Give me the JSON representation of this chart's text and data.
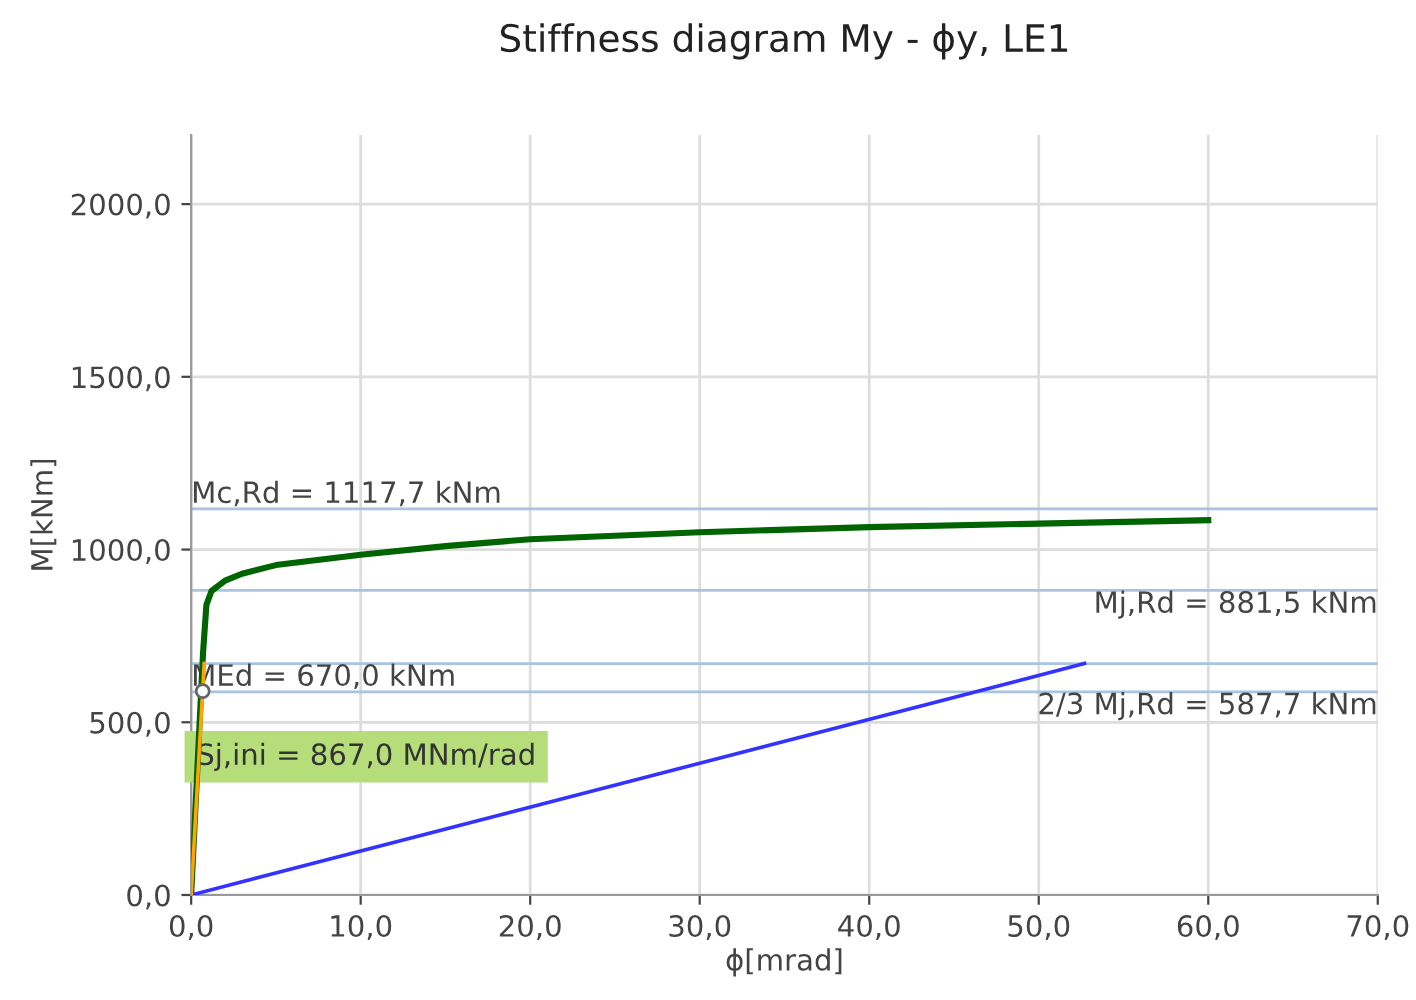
{
  "chart_data": {
    "type": "line",
    "title": "Stiffness diagram My - ϕy, LE1",
    "xlabel": "ϕ[mrad]",
    "ylabel": "M[kNm]",
    "xlim": [
      0,
      70
    ],
    "ylim": [
      0,
      2200
    ],
    "xticks": [
      {
        "value": 0,
        "label": "0,0"
      },
      {
        "value": 10,
        "label": "10,0"
      },
      {
        "value": 20,
        "label": "20,0"
      },
      {
        "value": 30,
        "label": "30,0"
      },
      {
        "value": 40,
        "label": "40,0"
      },
      {
        "value": 50,
        "label": "50,0"
      },
      {
        "value": 60,
        "label": "60,0"
      },
      {
        "value": 70,
        "label": "70,0"
      }
    ],
    "yticks": [
      {
        "value": 0,
        "label": "0,0"
      },
      {
        "value": 500,
        "label": "500,0"
      },
      {
        "value": 1000,
        "label": "1000,0"
      },
      {
        "value": 1500,
        "label": "1500,0"
      },
      {
        "value": 2000,
        "label": "2000,0"
      }
    ],
    "grid": true,
    "series": [
      {
        "color": "#006400",
        "x": [
          0,
          0.4,
          0.7,
          0.9,
          1.2,
          2,
          3,
          5,
          10,
          15,
          20,
          30,
          40,
          50,
          60
        ],
        "values": [
          0,
          400,
          700,
          840,
          880,
          910,
          930,
          955,
          985,
          1010,
          1030,
          1050,
          1065,
          1075,
          1085
        ]
      },
      {
        "color": "#3333ff",
        "x": [
          0,
          52.7
        ],
        "values": [
          0,
          670
        ]
      },
      {
        "color": "#ffa500",
        "x": [
          0,
          0.77
        ],
        "values": [
          0,
          670
        ]
      },
      {
        "type": "scatter",
        "color": "#ffffff",
        "x": [
          0.68
        ],
        "values": [
          590
        ]
      }
    ],
    "ref_lines": [
      {
        "axis": "y",
        "value": 1117.7,
        "label": "Mc,Rd = 1117,7 kNm",
        "color": "#a8c4e0"
      },
      {
        "axis": "y",
        "value": 881.5,
        "label": "Mj,Rd = 881,5 kNm",
        "color": "#a8c4e0"
      },
      {
        "axis": "y",
        "value": 670.0,
        "label": "MEd = 670,0 kNm",
        "color": "#a8c4e0"
      },
      {
        "axis": "y",
        "value": 587.7,
        "label": "2/3 Mj,Rd = 587,7 kNm",
        "color": "#a8c4e0"
      }
    ],
    "annotations": [
      {
        "text": "Sj,ini = 867,0 MNm/rad",
        "x": 0.3,
        "y": 400
      }
    ]
  }
}
